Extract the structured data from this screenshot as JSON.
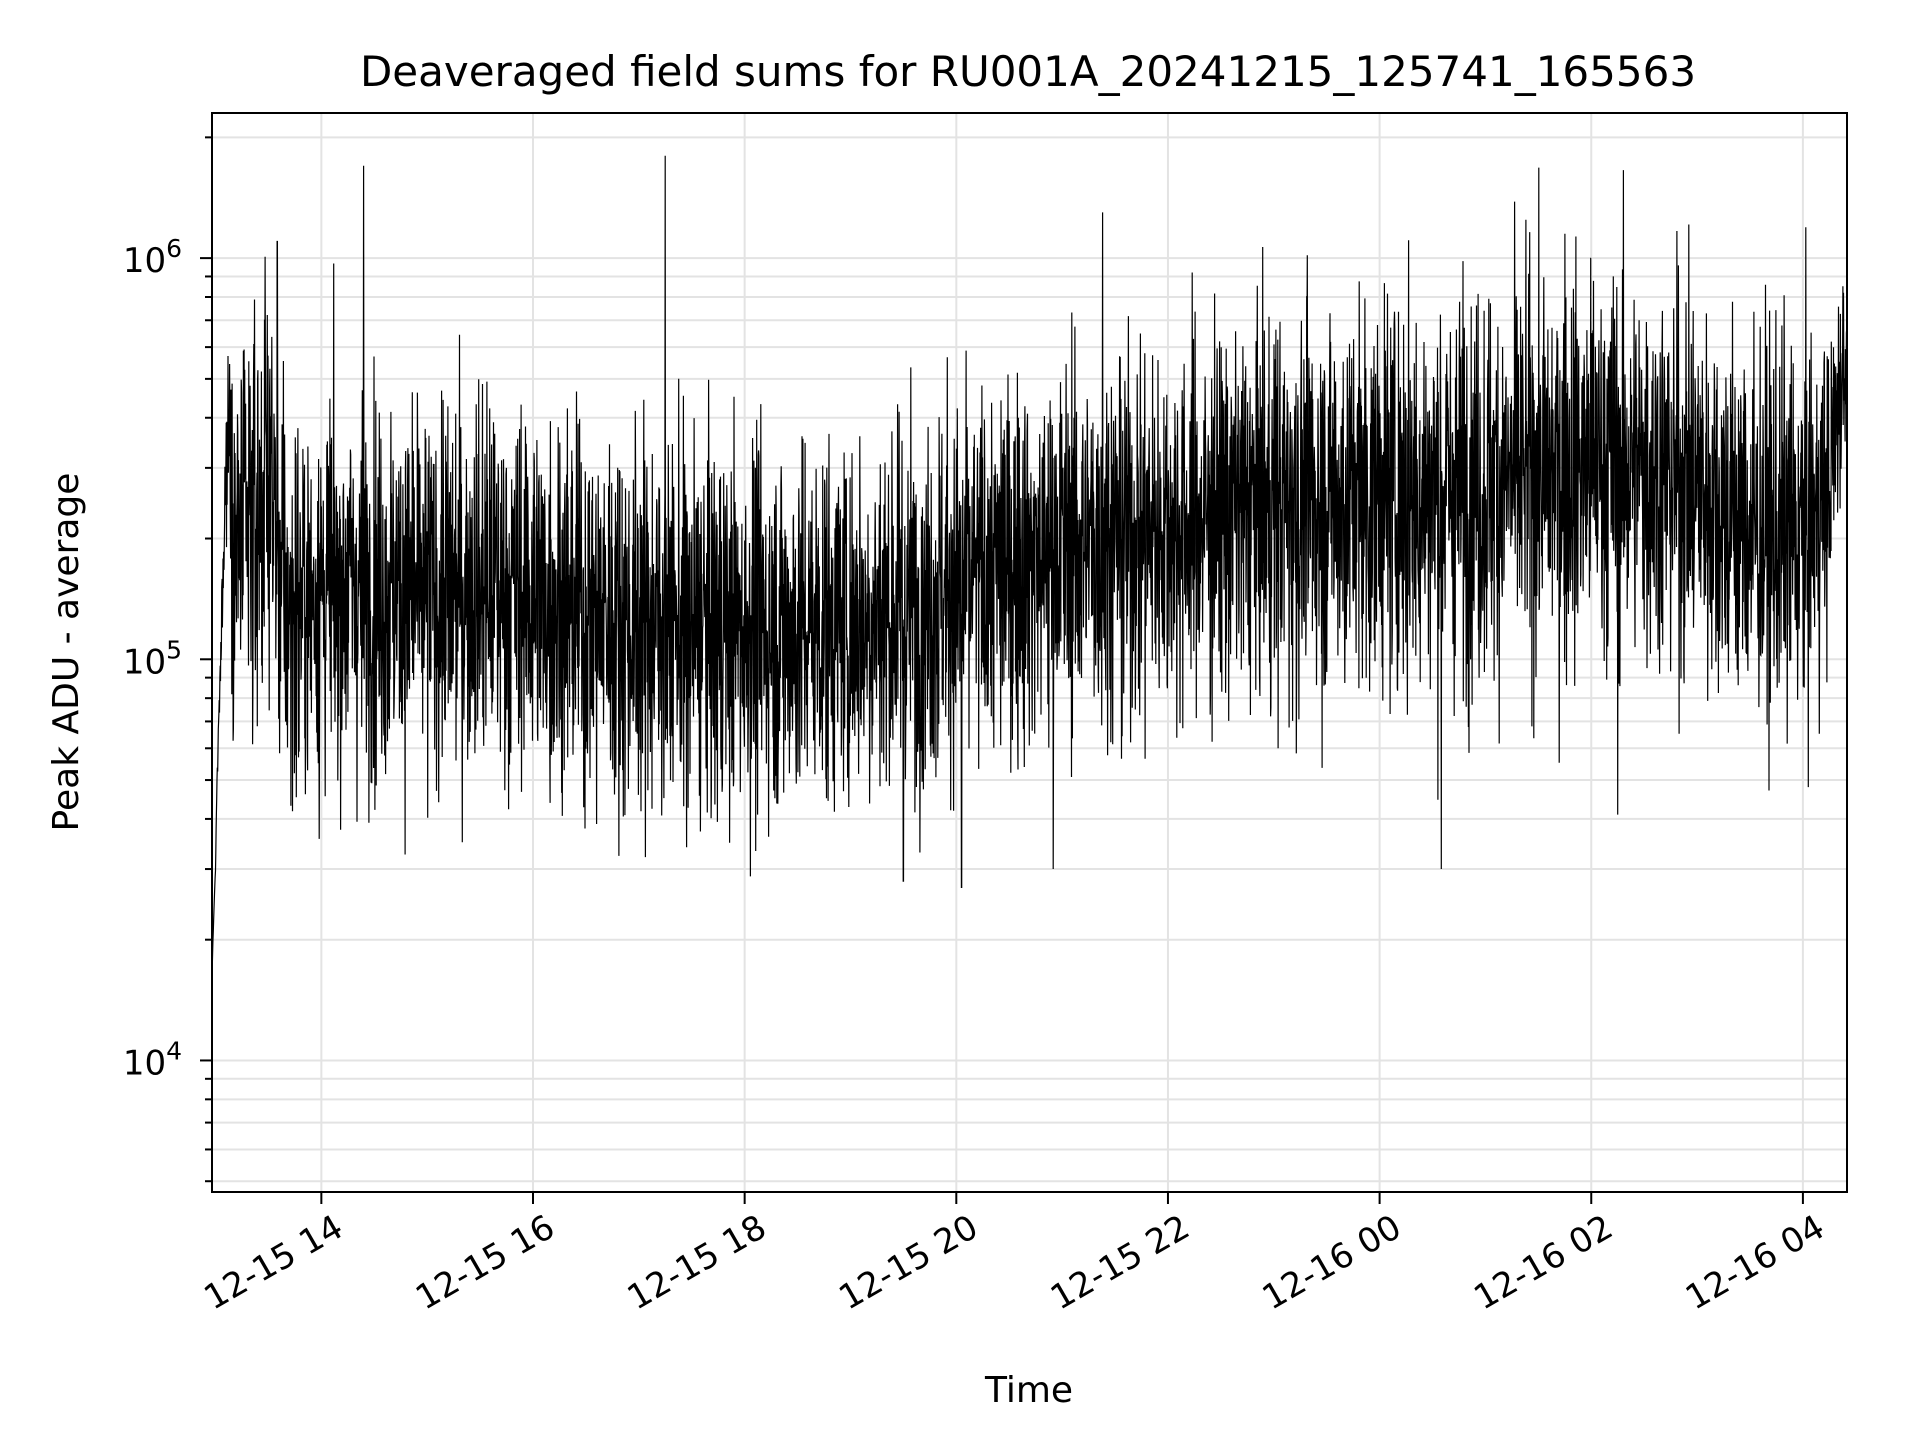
{
  "chart_data": {
    "type": "line",
    "title": "Deaveraged field sums for RU001A_20241215_125741_165563",
    "xlabel": "Time",
    "ylabel": "Peak ADU - average",
    "yscale": "log",
    "ylim": [
      4700,
      2300000
    ],
    "xlim": [
      "2024-12-15 12:58",
      "2024-12-16 04:25"
    ],
    "grid": true,
    "x_ticks": [
      "12-15 14",
      "12-15 16",
      "12-15 18",
      "12-15 20",
      "12-15 22",
      "12-16 00",
      "12-16 02",
      "12-16 04"
    ],
    "y_ticks": [
      {
        "base": "10",
        "exp": "4",
        "value": 10000
      },
      {
        "base": "10",
        "exp": "5",
        "value": 100000
      },
      {
        "base": "10",
        "exp": "6",
        "value": 1000000
      }
    ],
    "series": [
      {
        "color": "#000000",
        "x": [
          "2024-12-15 12:58",
          "2024-12-15 13:00",
          "2024-12-15 13:03",
          "2024-12-15 13:06",
          "2024-12-15 13:08",
          "2024-12-15 13:10",
          "2024-12-15 13:13",
          "2024-12-15 13:16",
          "2024-12-15 13:20",
          "2024-12-15 13:25",
          "2024-12-15 13:30",
          "2024-12-15 13:35",
          "2024-12-15 13:38",
          "2024-12-15 13:40",
          "2024-12-15 13:42",
          "2024-12-15 13:45",
          "2024-12-15 13:50",
          "2024-12-15 14:00",
          "2024-12-15 14:10",
          "2024-12-15 14:20",
          "2024-12-15 14:30",
          "2024-12-15 14:40",
          "2024-12-15 15:00",
          "2024-12-15 15:20",
          "2024-12-15 15:40",
          "2024-12-15 16:00",
          "2024-12-15 16:30",
          "2024-12-15 17:00",
          "2024-12-15 17:30",
          "2024-12-15 18:00",
          "2024-12-15 18:30",
          "2024-12-15 19:00",
          "2024-12-15 19:30",
          "2024-12-15 20:00",
          "2024-12-15 20:30",
          "2024-12-15 21:00",
          "2024-12-15 21:30",
          "2024-12-15 22:00",
          "2024-12-15 22:30",
          "2024-12-15 23:00",
          "2024-12-15 23:30",
          "2024-12-16 00:00",
          "2024-12-16 00:30",
          "2024-12-16 01:00",
          "2024-12-16 01:30",
          "2024-12-16 02:00",
          "2024-12-16 02:30",
          "2024-12-16 03:00",
          "2024-12-16 03:30",
          "2024-12-16 04:00",
          "2024-12-16 04:15",
          "2024-12-16 04:25"
        ],
        "center": [
          16000,
          30000,
          95000,
          300000,
          400000,
          180000,
          200000,
          210000,
          200000,
          230000,
          330000,
          180000,
          140000,
          135000,
          130000,
          135000,
          140000,
          150000,
          150000,
          155000,
          150000,
          148000,
          145000,
          150000,
          152000,
          145000,
          130000,
          125000,
          120000,
          120000,
          120000,
          125000,
          135000,
          150000,
          170000,
          190000,
          200000,
          210000,
          230000,
          240000,
          250000,
          260000,
          260000,
          270000,
          290000,
          310000,
          300000,
          270000,
          210000,
          200000,
          260000,
          600000
        ],
        "spread": [
          1.0,
          1.0,
          1.2,
          1.5,
          1.5,
          2.0,
          2.2,
          2.3,
          2.4,
          2.4,
          2.5,
          2.4,
          2.3,
          2.3,
          2.3,
          2.3,
          2.3,
          2.3,
          2.3,
          2.3,
          2.3,
          2.3,
          2.3,
          2.3,
          2.3,
          2.3,
          2.3,
          2.3,
          2.3,
          2.3,
          2.3,
          2.3,
          2.3,
          2.3,
          2.3,
          2.3,
          2.3,
          2.3,
          2.3,
          2.4,
          2.4,
          2.4,
          2.4,
          2.4,
          2.4,
          2.4,
          2.4,
          2.4,
          2.4,
          2.4,
          2.0,
          1.5
        ],
        "spikes": [
          {
            "x": "2024-12-15 13:35",
            "y": 1100000
          },
          {
            "x": "2024-12-15 14:24",
            "y": 1700000
          },
          {
            "x": "2024-12-15 15:20",
            "y": 35000
          },
          {
            "x": "2024-12-15 17:15",
            "y": 1800000
          },
          {
            "x": "2024-12-15 17:27",
            "y": 34000
          },
          {
            "x": "2024-12-15 19:30",
            "y": 28000
          },
          {
            "x": "2024-12-15 20:03",
            "y": 27000
          },
          {
            "x": "2024-12-15 20:55",
            "y": 30000
          },
          {
            "x": "2024-12-15 21:23",
            "y": 1300000
          },
          {
            "x": "2024-12-16 00:35",
            "y": 30000
          },
          {
            "x": "2024-12-16 01:45",
            "y": 1150000
          },
          {
            "x": "2024-12-16 02:15",
            "y": 41000
          }
        ]
      }
    ]
  }
}
